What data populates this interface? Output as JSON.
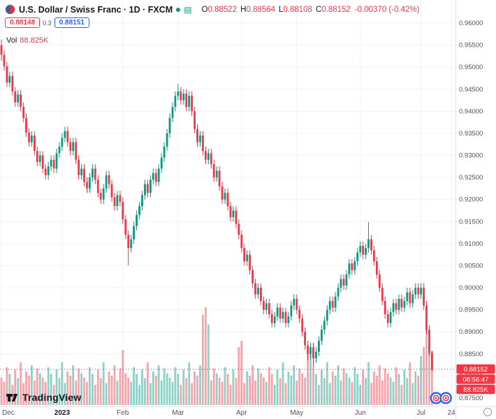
{
  "header": {
    "title": "U.S. Dollar / Swiss Franc · 1D · FXCM",
    "ohlc": {
      "o_label": "O",
      "o_value": "0.88522",
      "h_label": "H",
      "h_value": "0.88564",
      "l_label": "L",
      "l_value": "0.88108",
      "c_label": "C",
      "c_value": "0.88152",
      "change": "-0.00370 (-0.42%)"
    },
    "bid": "0.88148",
    "spread": "0.3",
    "ask": "0.88151",
    "vol_label": "Vol",
    "vol_value": "88.825K"
  },
  "icons": {
    "data_window": "▤"
  },
  "watermark": {
    "brand": "TradingView"
  },
  "chart_data": {
    "type": "candlestick",
    "title": "U.S. Dollar / Swiss Franc",
    "interval": "1D",
    "exchange": "FXCM",
    "volume_overlay": true,
    "price_axis": {
      "min": 0.875,
      "max": 0.96,
      "tick_step": 0.005
    },
    "time_ticks": [
      {
        "index": 0,
        "label": "Dec"
      },
      {
        "index": 22,
        "label": "2023",
        "bold": true
      },
      {
        "index": 44,
        "label": "Feb"
      },
      {
        "index": 64,
        "label": "Mar"
      },
      {
        "index": 87,
        "label": "Apr"
      },
      {
        "index": 107,
        "label": "May"
      },
      {
        "index": 130,
        "label": "Jun"
      },
      {
        "index": 152,
        "label": "Jul"
      },
      {
        "index": 163,
        "label": "24"
      }
    ],
    "future_slots": 8,
    "event_markers": {
      "indices": [
        157.5,
        161
      ]
    },
    "colors": {
      "up": "#089981",
      "down": "#f23645",
      "vol_up": "rgba(8,153,129,0.45)",
      "vol_down": "rgba(242,54,69,0.45)",
      "grid": "#f0f3fa",
      "axis_text": "#50535e",
      "badge": "#f23645",
      "accent_blue": "#2962ff"
    },
    "last": {
      "price": 0.88152,
      "countdown": "08:56:47",
      "volume": "88.825K",
      "change": "-0.00370",
      "change_pct": "-0.42%"
    },
    "candles": [
      [
        0.955,
        0.9562,
        0.9515,
        0.9528,
        45
      ],
      [
        0.9528,
        0.9538,
        0.9492,
        0.9502,
        38
      ],
      [
        0.9502,
        0.9512,
        0.9455,
        0.9465,
        62
      ],
      [
        0.9465,
        0.949,
        0.9455,
        0.948,
        51
      ],
      [
        0.948,
        0.949,
        0.9435,
        0.9445,
        33
      ],
      [
        0.9445,
        0.9455,
        0.941,
        0.942,
        58
      ],
      [
        0.942,
        0.9448,
        0.941,
        0.9438,
        44
      ],
      [
        0.9438,
        0.9448,
        0.94,
        0.941,
        70
      ],
      [
        0.941,
        0.942,
        0.9375,
        0.9385,
        36
      ],
      [
        0.9385,
        0.9395,
        0.9342,
        0.9352,
        55
      ],
      [
        0.9352,
        0.9362,
        0.932,
        0.933,
        48
      ],
      [
        0.933,
        0.9355,
        0.932,
        0.9345,
        65
      ],
      [
        0.9345,
        0.9355,
        0.93,
        0.931,
        40
      ],
      [
        0.931,
        0.932,
        0.9275,
        0.9285,
        60
      ],
      [
        0.9285,
        0.931,
        0.9275,
        0.93,
        52
      ],
      [
        0.93,
        0.931,
        0.926,
        0.927,
        45
      ],
      [
        0.927,
        0.928,
        0.9245,
        0.9255,
        38
      ],
      [
        0.9255,
        0.9285,
        0.9245,
        0.9275,
        62
      ],
      [
        0.9275,
        0.93,
        0.9265,
        0.929,
        51
      ],
      [
        0.929,
        0.93,
        0.926,
        0.927,
        33
      ],
      [
        0.927,
        0.9315,
        0.926,
        0.9305,
        58
      ],
      [
        0.9305,
        0.933,
        0.9295,
        0.932,
        44
      ],
      [
        0.932,
        0.935,
        0.931,
        0.934,
        70
      ],
      [
        0.934,
        0.9365,
        0.933,
        0.9355,
        36
      ],
      [
        0.9355,
        0.9365,
        0.932,
        0.933,
        55
      ],
      [
        0.933,
        0.934,
        0.93,
        0.931,
        48
      ],
      [
        0.931,
        0.934,
        0.93,
        0.933,
        65
      ],
      [
        0.933,
        0.934,
        0.928,
        0.929,
        40
      ],
      [
        0.929,
        0.93,
        0.9245,
        0.9255,
        60
      ],
      [
        0.9255,
        0.928,
        0.9245,
        0.927,
        52
      ],
      [
        0.927,
        0.928,
        0.923,
        0.924,
        45
      ],
      [
        0.924,
        0.925,
        0.9215,
        0.9225,
        38
      ],
      [
        0.9225,
        0.926,
        0.9215,
        0.925,
        62
      ],
      [
        0.925,
        0.928,
        0.924,
        0.927,
        51
      ],
      [
        0.927,
        0.928,
        0.9235,
        0.9245,
        33
      ],
      [
        0.9245,
        0.9255,
        0.9205,
        0.9215,
        58
      ],
      [
        0.9215,
        0.9225,
        0.919,
        0.92,
        44
      ],
      [
        0.92,
        0.9235,
        0.919,
        0.9225,
        70
      ],
      [
        0.9225,
        0.9265,
        0.9215,
        0.9255,
        36
      ],
      [
        0.9255,
        0.9265,
        0.9225,
        0.9235,
        55
      ],
      [
        0.9235,
        0.9245,
        0.9195,
        0.9205,
        48
      ],
      [
        0.9205,
        0.9215,
        0.9175,
        0.9185,
        65
      ],
      [
        0.9185,
        0.922,
        0.9175,
        0.921,
        40
      ],
      [
        0.921,
        0.922,
        0.9185,
        0.9195,
        60
      ],
      [
        0.9195,
        0.9205,
        0.9145,
        0.9155,
        90
      ],
      [
        0.9155,
        0.9165,
        0.911,
        0.912,
        52
      ],
      [
        0.912,
        0.913,
        0.905,
        0.909,
        45
      ],
      [
        0.909,
        0.912,
        0.908,
        0.911,
        38
      ],
      [
        0.911,
        0.915,
        0.91,
        0.914,
        62
      ],
      [
        0.914,
        0.9175,
        0.913,
        0.9165,
        51
      ],
      [
        0.9165,
        0.9195,
        0.9155,
        0.9185,
        33
      ],
      [
        0.9185,
        0.922,
        0.9175,
        0.921,
        58
      ],
      [
        0.921,
        0.9245,
        0.92,
        0.9235,
        44
      ],
      [
        0.9235,
        0.9245,
        0.9205,
        0.9215,
        70
      ],
      [
        0.9215,
        0.9255,
        0.9205,
        0.9245,
        36
      ],
      [
        0.9245,
        0.927,
        0.9235,
        0.926,
        55
      ],
      [
        0.926,
        0.927,
        0.923,
        0.924,
        48
      ],
      [
        0.924,
        0.928,
        0.923,
        0.927,
        65
      ],
      [
        0.927,
        0.9305,
        0.926,
        0.9295,
        40
      ],
      [
        0.9295,
        0.933,
        0.9285,
        0.932,
        60
      ],
      [
        0.932,
        0.936,
        0.931,
        0.935,
        52
      ],
      [
        0.935,
        0.9395,
        0.934,
        0.9385,
        45
      ],
      [
        0.9385,
        0.942,
        0.9375,
        0.941,
        38
      ],
      [
        0.941,
        0.9445,
        0.94,
        0.9435,
        62
      ],
      [
        0.9435,
        0.9462,
        0.9425,
        0.9445,
        51
      ],
      [
        0.9445,
        0.9455,
        0.9415,
        0.9425,
        33
      ],
      [
        0.9425,
        0.945,
        0.9415,
        0.944,
        58
      ],
      [
        0.944,
        0.945,
        0.94,
        0.941,
        44
      ],
      [
        0.941,
        0.9445,
        0.94,
        0.9435,
        70
      ],
      [
        0.9435,
        0.9445,
        0.939,
        0.94,
        36
      ],
      [
        0.94,
        0.941,
        0.935,
        0.936,
        55
      ],
      [
        0.936,
        0.937,
        0.932,
        0.933,
        48
      ],
      [
        0.933,
        0.9355,
        0.932,
        0.9345,
        65
      ],
      [
        0.9345,
        0.9355,
        0.93,
        0.931,
        148
      ],
      [
        0.931,
        0.932,
        0.928,
        0.929,
        160
      ],
      [
        0.929,
        0.9315,
        0.928,
        0.9305,
        132
      ],
      [
        0.9305,
        0.9315,
        0.927,
        0.928,
        40
      ],
      [
        0.928,
        0.929,
        0.924,
        0.925,
        60
      ],
      [
        0.925,
        0.9275,
        0.924,
        0.9265,
        52
      ],
      [
        0.9265,
        0.9275,
        0.922,
        0.923,
        45
      ],
      [
        0.923,
        0.924,
        0.919,
        0.92,
        38
      ],
      [
        0.92,
        0.9225,
        0.919,
        0.9215,
        62
      ],
      [
        0.9215,
        0.9225,
        0.9175,
        0.9185,
        51
      ],
      [
        0.9185,
        0.9195,
        0.915,
        0.916,
        33
      ],
      [
        0.916,
        0.9185,
        0.915,
        0.9175,
        58
      ],
      [
        0.9175,
        0.9185,
        0.9135,
        0.9145,
        44
      ],
      [
        0.9145,
        0.9155,
        0.911,
        0.912,
        95
      ],
      [
        0.912,
        0.913,
        0.908,
        0.909,
        105
      ],
      [
        0.909,
        0.91,
        0.905,
        0.906,
        36
      ],
      [
        0.906,
        0.9085,
        0.905,
        0.9075,
        55
      ],
      [
        0.9075,
        0.9085,
        0.903,
        0.904,
        48
      ],
      [
        0.904,
        0.905,
        0.9,
        0.901,
        65
      ],
      [
        0.901,
        0.902,
        0.8975,
        0.8985,
        40
      ],
      [
        0.8985,
        0.901,
        0.8975,
        0.9,
        60
      ],
      [
        0.9,
        0.901,
        0.896,
        0.897,
        52
      ],
      [
        0.897,
        0.898,
        0.894,
        0.895,
        45
      ],
      [
        0.895,
        0.8975,
        0.894,
        0.8965,
        38
      ],
      [
        0.8965,
        0.8975,
        0.893,
        0.894,
        62
      ],
      [
        0.894,
        0.895,
        0.891,
        0.892,
        51
      ],
      [
        0.892,
        0.8945,
        0.891,
        0.8935,
        33
      ],
      [
        0.8935,
        0.8965,
        0.8925,
        0.8955,
        58
      ],
      [
        0.8955,
        0.8965,
        0.892,
        0.893,
        44
      ],
      [
        0.893,
        0.8955,
        0.892,
        0.8945,
        70
      ],
      [
        0.8945,
        0.8955,
        0.891,
        0.892,
        36
      ],
      [
        0.892,
        0.8945,
        0.891,
        0.8935,
        55
      ],
      [
        0.8935,
        0.897,
        0.8925,
        0.896,
        48
      ],
      [
        0.896,
        0.8985,
        0.895,
        0.8975,
        65
      ],
      [
        0.8975,
        0.8985,
        0.894,
        0.895,
        40
      ],
      [
        0.895,
        0.896,
        0.892,
        0.893,
        60
      ],
      [
        0.893,
        0.894,
        0.889,
        0.89,
        52
      ],
      [
        0.89,
        0.891,
        0.886,
        0.887,
        45
      ],
      [
        0.887,
        0.888,
        0.8835,
        0.885,
        92
      ],
      [
        0.885,
        0.8875,
        0.884,
        0.8865,
        85
      ],
      [
        0.8865,
        0.8875,
        0.882,
        0.884,
        62
      ],
      [
        0.884,
        0.8865,
        0.883,
        0.8855,
        51
      ],
      [
        0.8855,
        0.889,
        0.8845,
        0.888,
        33
      ],
      [
        0.888,
        0.8915,
        0.887,
        0.8905,
        58
      ],
      [
        0.8905,
        0.8935,
        0.8895,
        0.8925,
        44
      ],
      [
        0.8925,
        0.896,
        0.8915,
        0.895,
        70
      ],
      [
        0.895,
        0.898,
        0.894,
        0.897,
        36
      ],
      [
        0.897,
        0.898,
        0.8945,
        0.8955,
        55
      ],
      [
        0.8955,
        0.899,
        0.8945,
        0.898,
        48
      ],
      [
        0.898,
        0.901,
        0.897,
        0.9,
        65
      ],
      [
        0.9,
        0.903,
        0.899,
        0.902,
        40
      ],
      [
        0.902,
        0.903,
        0.8995,
        0.9005,
        60
      ],
      [
        0.9005,
        0.904,
        0.8995,
        0.903,
        52
      ],
      [
        0.903,
        0.9065,
        0.902,
        0.9055,
        45
      ],
      [
        0.9055,
        0.9065,
        0.903,
        0.904,
        38
      ],
      [
        0.904,
        0.907,
        0.903,
        0.906,
        62
      ],
      [
        0.906,
        0.909,
        0.905,
        0.908,
        51
      ],
      [
        0.908,
        0.9105,
        0.907,
        0.9095,
        33
      ],
      [
        0.9095,
        0.9105,
        0.9065,
        0.9075,
        58
      ],
      [
        0.9075,
        0.91,
        0.9065,
        0.909,
        44
      ],
      [
        0.909,
        0.9149,
        0.908,
        0.911,
        70
      ],
      [
        0.911,
        0.912,
        0.9075,
        0.9085,
        36
      ],
      [
        0.9085,
        0.9095,
        0.905,
        0.906,
        55
      ],
      [
        0.906,
        0.907,
        0.902,
        0.903,
        48
      ],
      [
        0.903,
        0.904,
        0.899,
        0.9,
        65
      ],
      [
        0.9,
        0.901,
        0.896,
        0.897,
        40
      ],
      [
        0.897,
        0.898,
        0.893,
        0.894,
        60
      ],
      [
        0.894,
        0.895,
        0.891,
        0.892,
        52
      ],
      [
        0.892,
        0.8955,
        0.891,
        0.8945,
        45
      ],
      [
        0.8945,
        0.8975,
        0.8935,
        0.8965,
        38
      ],
      [
        0.8965,
        0.8975,
        0.894,
        0.895,
        62
      ],
      [
        0.895,
        0.8985,
        0.894,
        0.8975,
        51
      ],
      [
        0.8975,
        0.8985,
        0.8945,
        0.8955,
        33
      ],
      [
        0.8955,
        0.898,
        0.8945,
        0.897,
        58
      ],
      [
        0.897,
        0.9,
        0.896,
        0.899,
        44
      ],
      [
        0.899,
        0.9,
        0.8955,
        0.8965,
        70
      ],
      [
        0.8965,
        0.8995,
        0.8955,
        0.8985,
        36
      ],
      [
        0.8985,
        0.901,
        0.8975,
        0.9,
        55
      ],
      [
        0.9,
        0.901,
        0.8975,
        0.8985,
        48
      ],
      [
        0.8985,
        0.901,
        0.8975,
        0.9,
        80
      ],
      [
        0.9,
        0.901,
        0.895,
        0.896,
        95
      ],
      [
        0.896,
        0.897,
        0.8895,
        0.8905,
        125
      ],
      [
        0.8905,
        0.8915,
        0.8845,
        0.8852,
        100
      ],
      [
        0.88522,
        0.88564,
        0.88108,
        0.88152,
        88.825
      ]
    ]
  }
}
